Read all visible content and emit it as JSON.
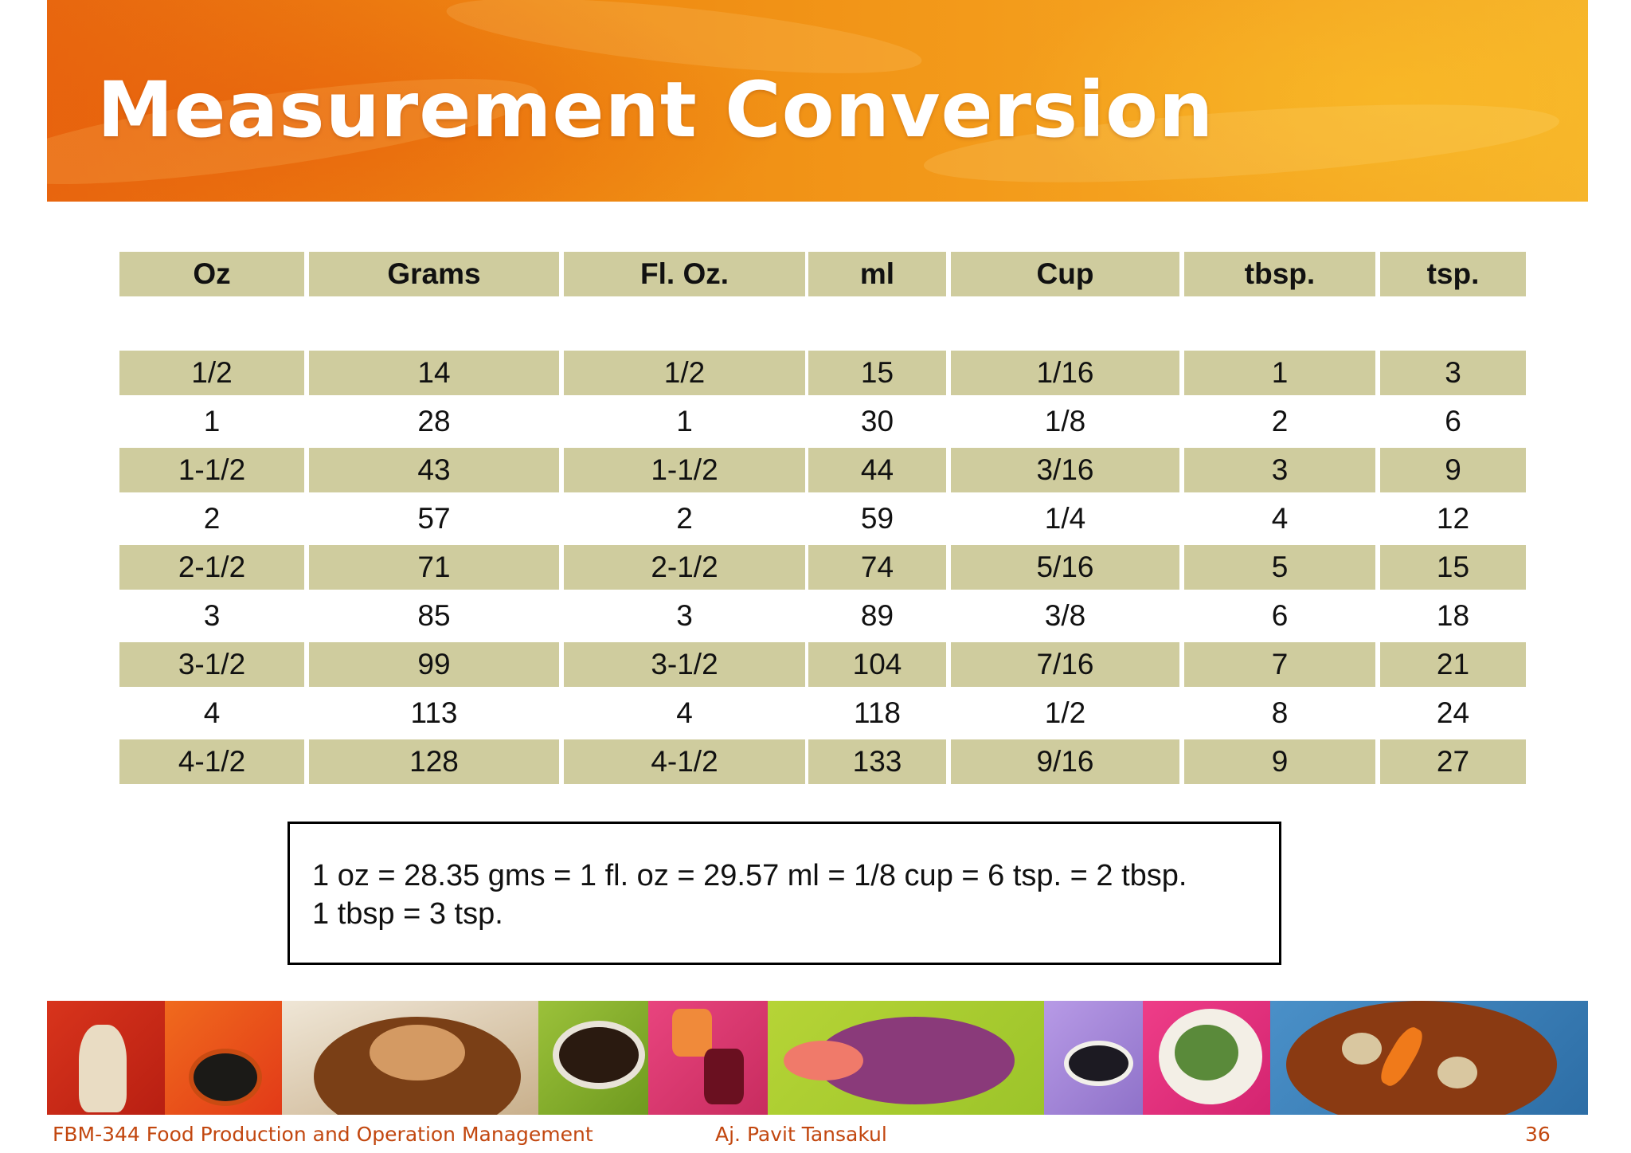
{
  "slide": {
    "title": "Measurement Conversion",
    "footer": {
      "course": "FBM-344 Food Production and Operation Management",
      "author": "Aj. Pavit Tansakul",
      "page_number": "36"
    },
    "accent_color": "#ef8a12",
    "table_shade_color": "#cfcc9e"
  },
  "table": {
    "headers": [
      "Oz",
      "Grams",
      "Fl. Oz.",
      "ml",
      "Cup",
      "tbsp.",
      "tsp."
    ],
    "rows": [
      [
        "1/2",
        "14",
        "1/2",
        "15",
        "1/16",
        "1",
        "3"
      ],
      [
        "1",
        "28",
        "1",
        "30",
        "1/8",
        "2",
        "6"
      ],
      [
        "1-1/2",
        "43",
        "1-1/2",
        "44",
        "3/16",
        "3",
        "9"
      ],
      [
        "2",
        "57",
        "2",
        "59",
        "1/4",
        "4",
        "12"
      ],
      [
        "2-1/2",
        "71",
        "2-1/2",
        "74",
        "5/16",
        "5",
        "15"
      ],
      [
        "3",
        "85",
        "3",
        "89",
        "3/8",
        "6",
        "18"
      ],
      [
        "3-1/2",
        "99",
        "3-1/2",
        "104",
        "7/16",
        "7",
        "21"
      ],
      [
        "4",
        "113",
        "4",
        "118",
        "1/2",
        "8",
        "24"
      ],
      [
        "4-1/2",
        "128",
        "4-1/2",
        "133",
        "9/16",
        "9",
        "27"
      ]
    ]
  },
  "note": {
    "line1": "1 oz = 28.35 gms = 1 fl. oz = 29.57 ml = 1/8 cup = 6 tsp. = 2 tbsp.",
    "line2": "1 tbsp = 3 tsp."
  }
}
